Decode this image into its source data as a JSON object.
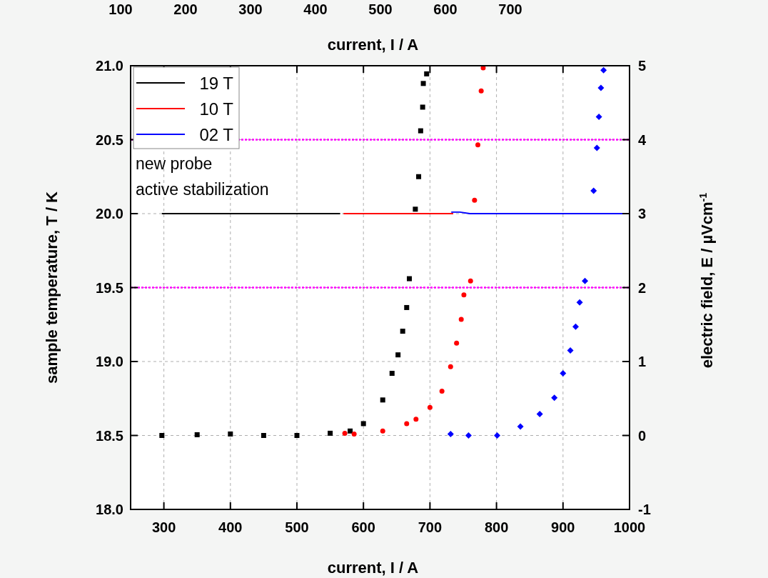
{
  "chart_data": {
    "type": "line",
    "xlabel": "current, I / A",
    "ylabel": "sample temperature, T / K",
    "y2label": "electric field, E / µVcm$^{-1}$",
    "x2label": "current, I / A",
    "xlim": [
      250,
      1000
    ],
    "xticks": [
      300,
      400,
      500,
      600,
      700,
      800,
      900,
      1000
    ],
    "ylim": [
      18.0,
      21.0
    ],
    "yticks": [
      {
        "value": 18.0,
        "label": "18.0"
      },
      {
        "value": 18.5,
        "label": "18.5"
      },
      {
        "value": 19.0,
        "label": "19.0"
      },
      {
        "value": 19.5,
        "label": "19.5"
      },
      {
        "value": 20.0,
        "label": "20.0"
      },
      {
        "value": 20.5,
        "label": "20.5"
      },
      {
        "value": 21.0,
        "label": "21.0"
      }
    ],
    "y2lim": [
      -1,
      5
    ],
    "y2ticks": [
      -1,
      0,
      1,
      2,
      3,
      4,
      5
    ],
    "x2lim": [
      100,
      700
    ],
    "x2ticks": [
      100,
      200,
      300,
      400,
      500,
      600,
      700
    ],
    "grid": true,
    "legend": "top left",
    "annotations": [
      "new probe",
      "active stabilization"
    ],
    "series": [
      {
        "axis": "y2",
        "color": "#ff00ff",
        "line_style": "dotted",
        "x": [
          250,
          1000
        ],
        "values": [
          4,
          4
        ]
      },
      {
        "axis": "y2",
        "color": "#ff00ff",
        "line_style": "dotted",
        "x": [
          250,
          1000
        ],
        "values": [
          2,
          2
        ]
      },
      {
        "name": "19 T",
        "color": "#000000",
        "x": [
          297,
          350,
          400,
          450,
          500,
          550,
          565
        ],
        "values": [
          20.0,
          20.0,
          20.0,
          20.0,
          20.0,
          20.0,
          20.0
        ]
      },
      {
        "name": "10 T",
        "color": "#ff0000",
        "x": [
          570,
          620,
          680,
          735
        ],
        "values": [
          20.0,
          20.0,
          20.0,
          20.0
        ]
      },
      {
        "name": "02 T",
        "color": "#0000ff",
        "x": [
          732,
          745,
          760,
          800,
          850,
          900,
          950,
          990
        ],
        "values": [
          20.01,
          20.01,
          20.0,
          20.0,
          20.0,
          20.0,
          20.0,
          20.0
        ]
      },
      {
        "type": "scatter",
        "axis": "y2",
        "marker": "square",
        "color": "#000000",
        "x": [
          297,
          350,
          400,
          450,
          500,
          550,
          580,
          600,
          629,
          643,
          652,
          659,
          665,
          669,
          678,
          683,
          686,
          689,
          690,
          695
        ],
        "values": [
          0,
          0.01,
          0.02,
          0.0,
          0.0,
          0.03,
          0.06,
          0.16,
          0.48,
          0.84,
          1.09,
          1.41,
          1.73,
          2.12,
          3.06,
          3.5,
          4.12,
          4.44,
          4.76,
          4.89
        ]
      },
      {
        "type": "scatter",
        "axis": "y2",
        "marker": "circle",
        "color": "#ff0000",
        "x": [
          572,
          586,
          629,
          665,
          679,
          700,
          718,
          731,
          740,
          747,
          751,
          761,
          767,
          772,
          777,
          780
        ],
        "values": [
          0.03,
          0.02,
          0.06,
          0.16,
          0.22,
          0.38,
          0.6,
          0.93,
          1.25,
          1.57,
          1.9,
          2.09,
          3.18,
          3.93,
          4.66,
          4.97
        ]
      },
      {
        "type": "scatter",
        "axis": "y2",
        "marker": "diamond",
        "color": "#0000ff",
        "x": [
          731,
          758,
          801,
          836,
          865,
          887,
          900,
          911,
          919,
          925,
          933,
          946,
          951,
          954,
          957,
          961
        ],
        "values": [
          0.02,
          0.0,
          0.0,
          0.12,
          0.29,
          0.51,
          0.84,
          1.15,
          1.47,
          1.8,
          2.09,
          3.31,
          3.89,
          4.31,
          4.7,
          4.94
        ]
      }
    ]
  }
}
